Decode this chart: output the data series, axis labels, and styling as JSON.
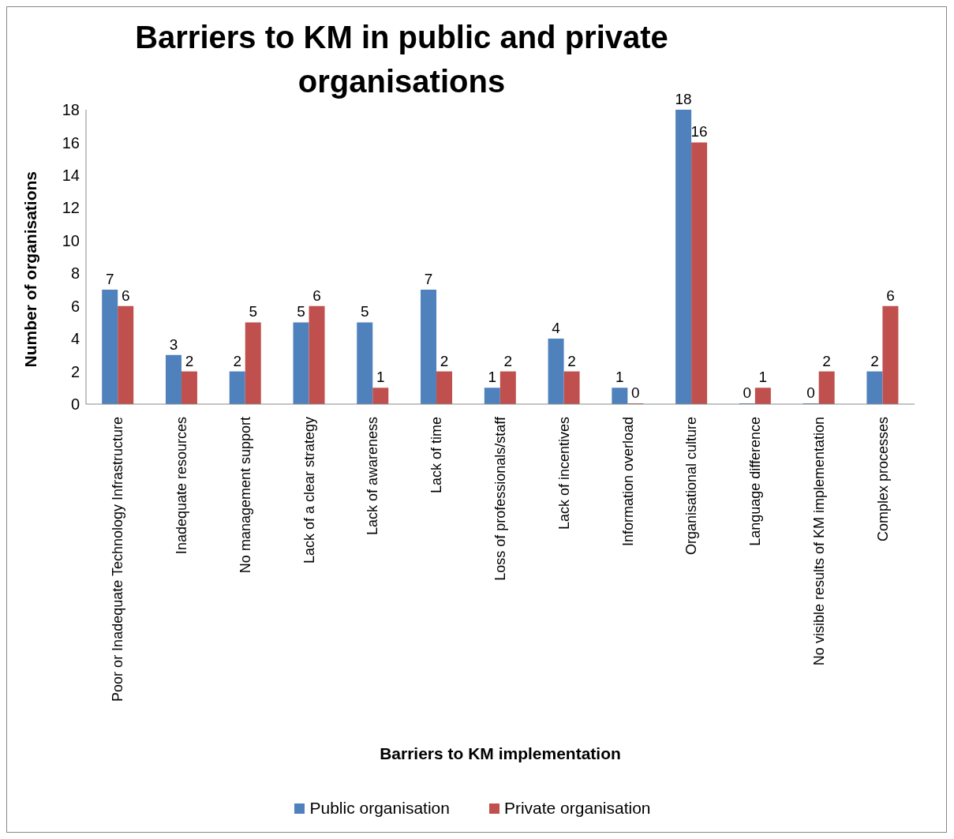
{
  "chart_data": {
    "type": "bar",
    "title": "Barriers to KM in public and private organisations",
    "xlabel": "Barriers to KM implementation",
    "ylabel": "Number of organisations",
    "categories": [
      "Poor or Inadequate Technology Infrastructure",
      "Inadequate resources",
      "No management support",
      "Lack of a clear strategy",
      "Lack of awareness",
      "Lack of time",
      "Loss of professionals/staff",
      "Lack of incentives",
      "Information overload",
      "Organisational culture",
      "Language difference",
      "No visible results of KM implementation",
      "Complex processes"
    ],
    "series": [
      {
        "name": "Public organisation",
        "color": "#4f81bd",
        "values": [
          7,
          3,
          2,
          5,
          5,
          7,
          1,
          4,
          1,
          18,
          0,
          0,
          2
        ]
      },
      {
        "name": "Private organisation",
        "color": "#c0504d",
        "values": [
          6,
          2,
          5,
          6,
          1,
          2,
          2,
          2,
          0,
          16,
          1,
          2,
          6
        ]
      }
    ],
    "ylim": [
      0,
      18
    ],
    "yticks": [
      0,
      2,
      4,
      6,
      8,
      10,
      12,
      14,
      16,
      18
    ],
    "grid": false,
    "legend": "bottom",
    "data_labels": true
  }
}
